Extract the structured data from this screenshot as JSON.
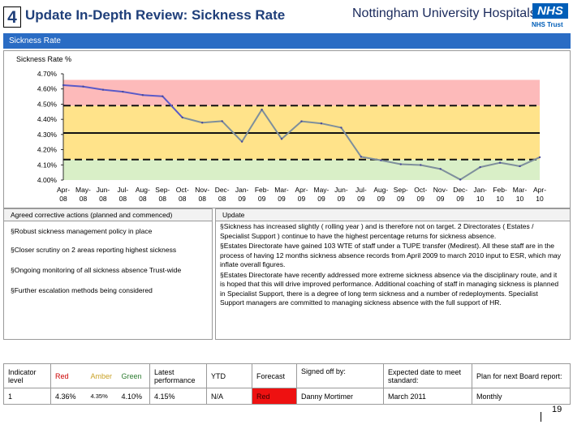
{
  "header": {
    "slide_number": "4",
    "title": "Update In-Depth Review: Sickness Rate",
    "logo_text": "Nottingham University Hospitals",
    "nhs_mark": "NHS",
    "nhs_trust": "NHS Trust"
  },
  "section": {
    "label": "Sickness Rate"
  },
  "chart_data": {
    "type": "line",
    "title": "Sickness Rate %",
    "xlabel": "",
    "ylabel": "Sickness Rate %",
    "ylim": [
      4.0,
      4.7
    ],
    "yticks": [
      "4.70%",
      "4.60%",
      "4.50%",
      "4.40%",
      "4.30%",
      "4.20%",
      "4.10%",
      "4.00%"
    ],
    "categories": [
      [
        "Apr-",
        "08"
      ],
      [
        "May-",
        "08"
      ],
      [
        "Jun-",
        "08"
      ],
      [
        "Jul-",
        "08"
      ],
      [
        "Aug-",
        "08"
      ],
      [
        "Sep-",
        "08"
      ],
      [
        "Oct-",
        "08"
      ],
      [
        "Nov-",
        "08"
      ],
      [
        "Dec-",
        "08"
      ],
      [
        "Jan-",
        "09"
      ],
      [
        "Feb-",
        "09"
      ],
      [
        "Mar-",
        "09"
      ],
      [
        "Apr-",
        "09"
      ],
      [
        "May-",
        "09"
      ],
      [
        "Jun-",
        "09"
      ],
      [
        "Jul-",
        "09"
      ],
      [
        "Aug-",
        "09"
      ],
      [
        "Sep-",
        "09"
      ],
      [
        "Oct-",
        "09"
      ],
      [
        "Nov-",
        "09"
      ],
      [
        "Dec-",
        "09"
      ],
      [
        "Jan-",
        "10"
      ],
      [
        "Feb-",
        "10"
      ],
      [
        "Mar-",
        "10"
      ],
      [
        "Apr-",
        "10"
      ]
    ],
    "series": [
      {
        "name": "Sickness Rate",
        "values": [
          4.625,
          4.616,
          4.595,
          4.582,
          4.56,
          4.552,
          4.412,
          4.378,
          4.388,
          4.253,
          4.464,
          4.271,
          4.387,
          4.373,
          4.345,
          4.153,
          4.13,
          4.104,
          4.099,
          4.073,
          4.003,
          4.085,
          4.114,
          4.091,
          4.15
        ],
        "colors": {
          "above_target": "#5a5ac8",
          "below_target": "#7e8f9c"
        }
      }
    ],
    "bands": [
      {
        "from": 4.0,
        "to": 4.135,
        "color": "#d9efc7"
      },
      {
        "from": 4.135,
        "to": 4.49,
        "color": "#ffe38a"
      },
      {
        "from": 4.49,
        "to": 4.66,
        "color": "#fdbaba"
      }
    ],
    "reference_lines": [
      {
        "value": 4.49,
        "style": "dashed"
      },
      {
        "value": 4.31,
        "style": "solid"
      },
      {
        "value": 4.135,
        "style": "dashed"
      }
    ],
    "grid": false,
    "legend": "none"
  },
  "actions": {
    "heading": "Agreed corrective actions (planned and commenced)",
    "items": [
      "§Robust sickness management policy in place",
      "§Closer scrutiny on 2 areas reporting highest sickness",
      "§Ongoing monitoring of all sickness absence Trust-wide",
      "§Further escalation methods being considered"
    ]
  },
  "update": {
    "heading": "Update",
    "paragraphs": [
      "§Sickness has increased slightly ( rolling year ) and is therefore not on target. 2 Directorates ( Estates / Specialist Support ) continue to have the highest percentage returns for sickness absence.",
      "§Estates Directorate have gained 103 WTE of staff under a TUPE transfer (Medirest). All these staff are in the process of having 12 months sickness absence records from April 2009 to march 2010 input to ESR, which may inflate overall figures.",
      "§Estates Directorate have recently addressed more extreme sickness absence via the disciplinary route, and it is hoped that this will drive improved performance. Additional coaching of staff in managing sickness is planned in Specialist Support, there is a degree of long term sickness and a number of redeployments. Specialist Support managers are committed to managing sickness absence with the full support of HR."
    ]
  },
  "status_table": {
    "headers": {
      "indicator_level": "Indicator level",
      "red": "Red",
      "amber": "Amber",
      "green": "Green",
      "latest": "Latest performance",
      "ytd": "YTD",
      "forecast": "Forecast",
      "signed_off": "Signed off by:",
      "expected_date": "Expected date to meet standard:",
      "plan": "Plan for next Board report:"
    },
    "row": {
      "indicator_level": "1",
      "red": "4.36%",
      "amber": "4.35%",
      "green": "4.10%",
      "latest": "4.15%",
      "ytd": "N/A",
      "forecast": "Red",
      "signed_off": "Danny Mortimer",
      "expected_date": "March 2011",
      "plan": "Monthly"
    },
    "colors": {
      "forecast_cell": "#ee1111"
    }
  },
  "footer": {
    "page_number": "19"
  }
}
